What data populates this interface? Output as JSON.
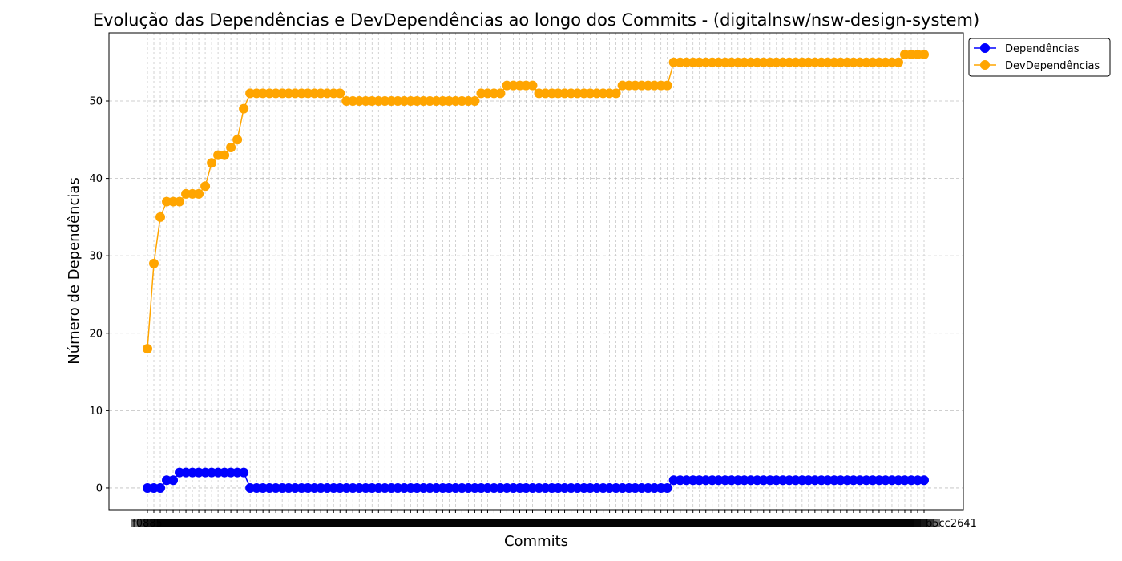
{
  "chart_data": {
    "type": "line",
    "title": "Evolução das Dependências e DevDependências ao longo dos Commits - (digitalnsw/nsw-design-system)",
    "xlabel": "Commits",
    "ylabel": "Número de Dependências",
    "ylim": [
      -2.8,
      58.8
    ],
    "yticks": [
      0,
      10,
      20,
      30,
      40,
      50
    ],
    "grid": true,
    "legend_position": "outside-top-right",
    "xtick_first": "f0885",
    "xtick_last": "b5cc2641",
    "n_commits": 122,
    "series": [
      {
        "name": "Dependências",
        "color": "#0000ff",
        "values": [
          0,
          0,
          0,
          1,
          1,
          2,
          2,
          2,
          2,
          2,
          2,
          2,
          2,
          2,
          2,
          2,
          0,
          0,
          0,
          0,
          0,
          0,
          0,
          0,
          0,
          0,
          0,
          0,
          0,
          0,
          0,
          0,
          0,
          0,
          0,
          0,
          0,
          0,
          0,
          0,
          0,
          0,
          0,
          0,
          0,
          0,
          0,
          0,
          0,
          0,
          0,
          0,
          0,
          0,
          0,
          0,
          0,
          0,
          0,
          0,
          0,
          0,
          0,
          0,
          0,
          0,
          0,
          0,
          0,
          0,
          0,
          0,
          0,
          0,
          0,
          0,
          0,
          0,
          0,
          0,
          0,
          0,
          1,
          1,
          1,
          1,
          1,
          1,
          1,
          1,
          1,
          1,
          1,
          1,
          1,
          1,
          1,
          1,
          1,
          1,
          1,
          1,
          1,
          1,
          1,
          1,
          1,
          1,
          1,
          1,
          1,
          1,
          1,
          1,
          1,
          1,
          1,
          1,
          1,
          1,
          1,
          1
        ]
      },
      {
        "name": "DevDependências",
        "color": "#ffa500",
        "values": [
          18,
          29,
          35,
          37,
          37,
          37,
          38,
          38,
          38,
          39,
          42,
          43,
          43,
          44,
          45,
          49,
          51,
          51,
          51,
          51,
          51,
          51,
          51,
          51,
          51,
          51,
          51,
          51,
          51,
          51,
          51,
          50,
          50,
          50,
          50,
          50,
          50,
          50,
          50,
          50,
          50,
          50,
          50,
          50,
          50,
          50,
          50,
          50,
          50,
          50,
          50,
          50,
          51,
          51,
          51,
          51,
          52,
          52,
          52,
          52,
          52,
          51,
          51,
          51,
          51,
          51,
          51,
          51,
          51,
          51,
          51,
          51,
          51,
          51,
          52,
          52,
          52,
          52,
          52,
          52,
          52,
          52,
          55,
          55,
          55,
          55,
          55,
          55,
          55,
          55,
          55,
          55,
          55,
          55,
          55,
          55,
          55,
          55,
          55,
          55,
          55,
          55,
          55,
          55,
          55,
          55,
          55,
          55,
          55,
          55,
          55,
          55,
          55,
          55,
          55,
          55,
          55,
          55,
          56,
          56,
          56,
          56
        ]
      }
    ]
  }
}
